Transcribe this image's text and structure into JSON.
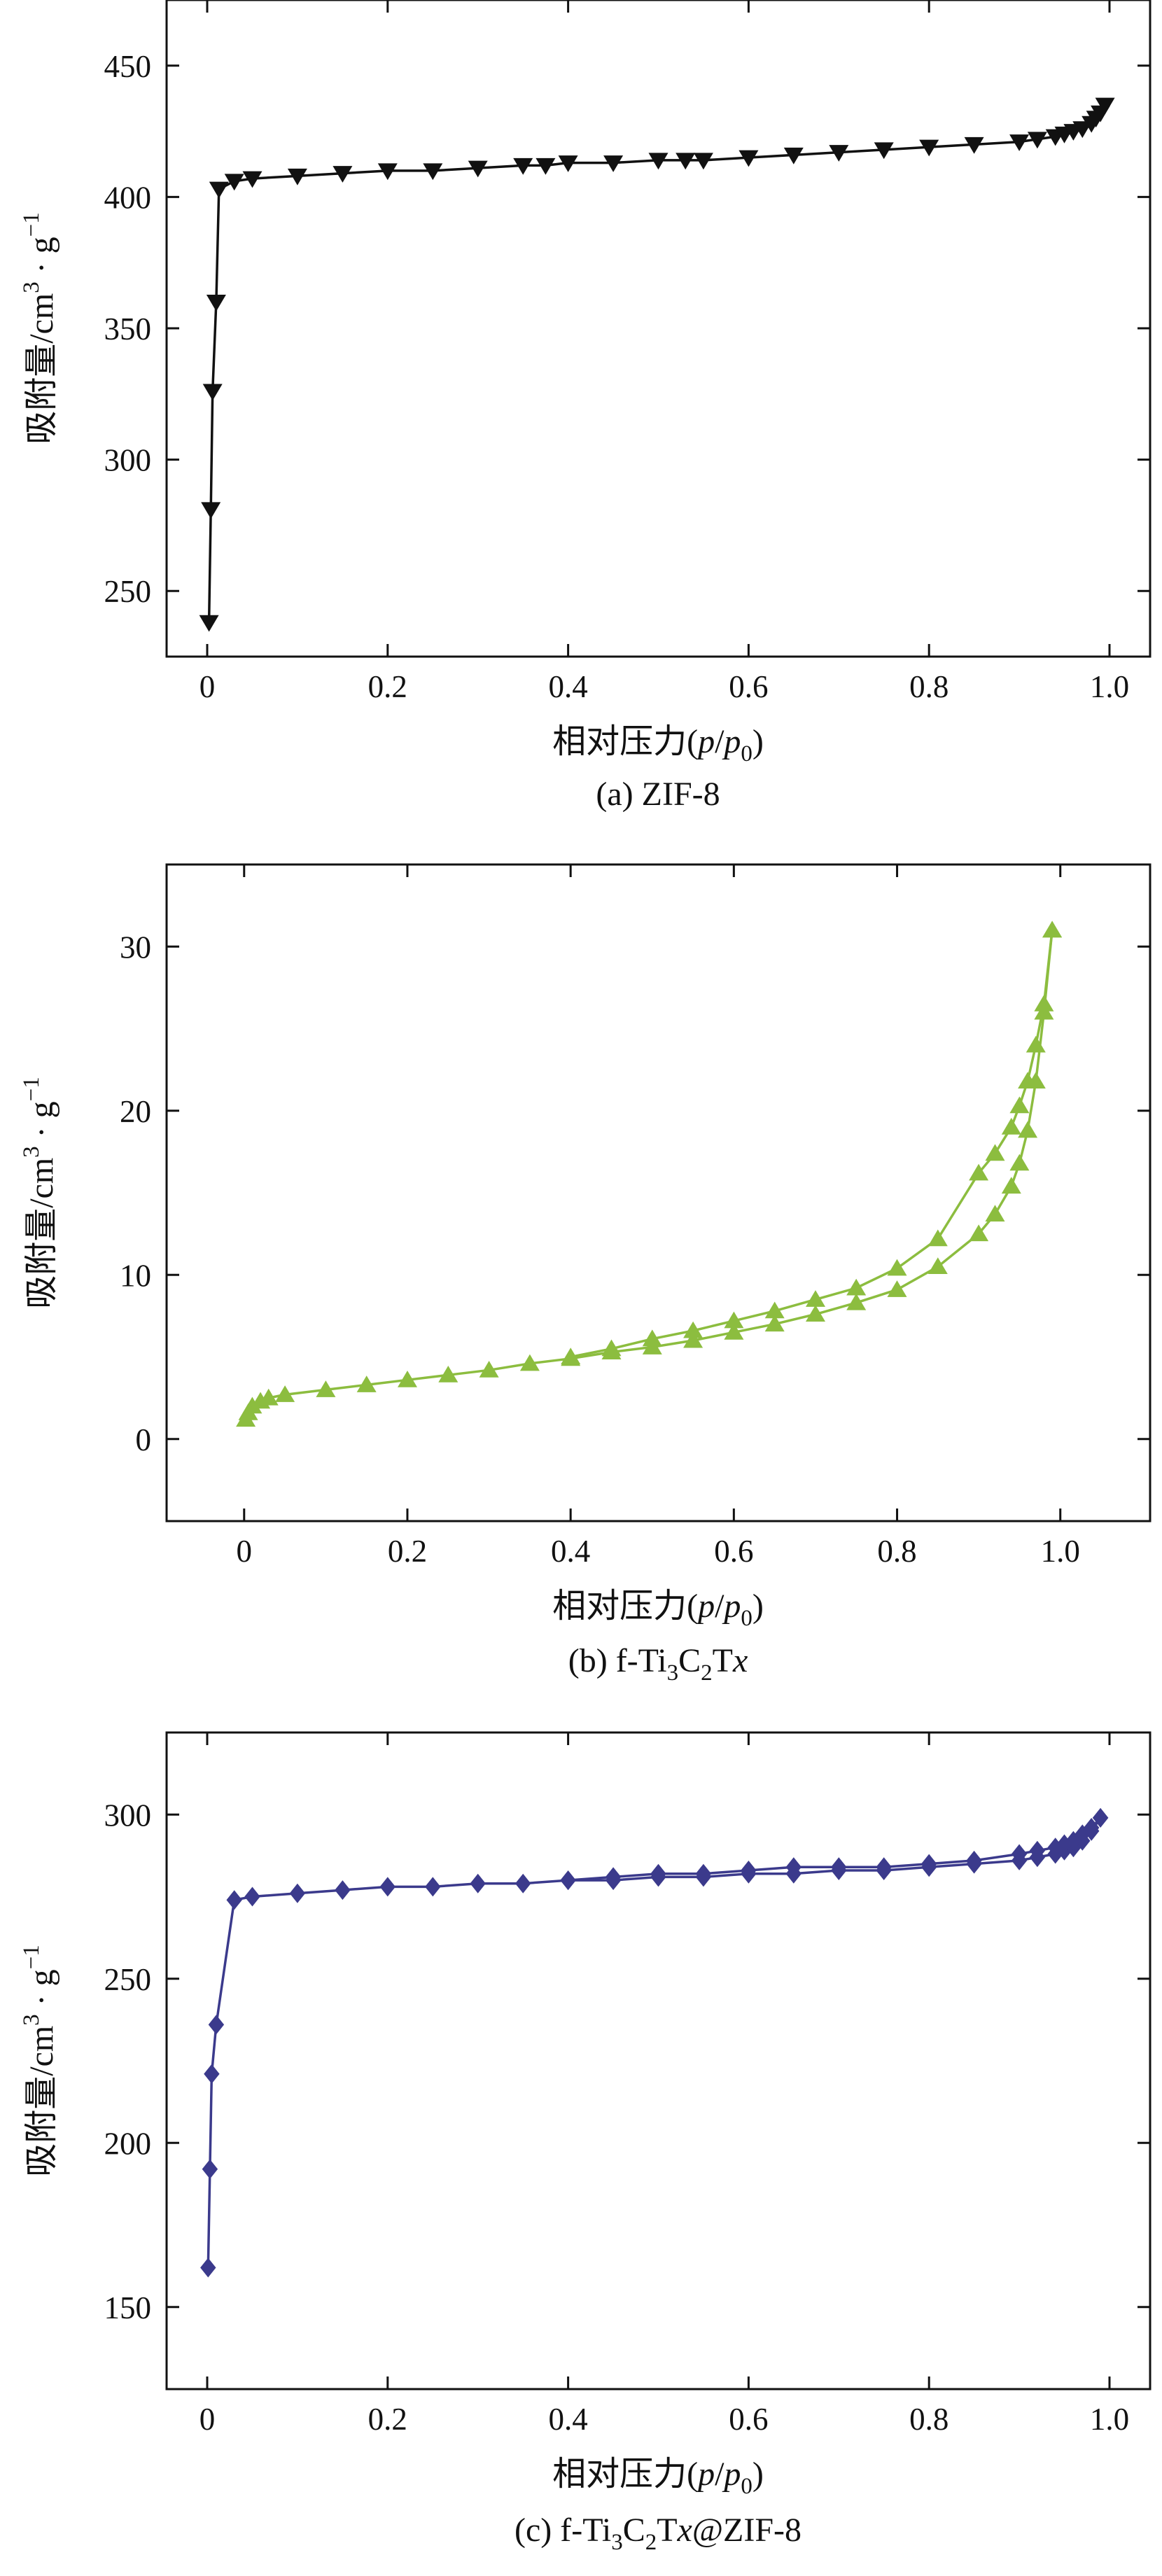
{
  "chart_data": [
    {
      "type": "line",
      "caption": {
        "pre": "(a) ZIF-8",
        "sub1": "",
        "mid": "",
        "sub2": "",
        "mid2": "",
        "ital": "",
        "post": ""
      },
      "xlabel": {
        "pre": "相对压力(",
        "i1": "p",
        "slash": "/",
        "i2": "p",
        "sub": "0",
        "post": ")"
      },
      "ylabel": {
        "pre": "吸附量/cm",
        "sup": "3",
        "mid": " · g",
        "sup2": "−1"
      },
      "xlim": [
        -0.045,
        1.045
      ],
      "ylim": [
        225,
        475
      ],
      "xticks": [
        0,
        0.2,
        0.4,
        0.6,
        0.8,
        1.0
      ],
      "xtick_labels": [
        "0",
        "0.2",
        "0.4",
        "0.6",
        "0.8",
        "1.0"
      ],
      "yticks": [
        250,
        300,
        350,
        400,
        450
      ],
      "ytick_labels": [
        "250",
        "300",
        "350",
        "400",
        "450"
      ],
      "color": "#111111",
      "marker": "triangle-down",
      "series": [
        {
          "x": [
            0.002,
            0.004,
            0.006,
            0.01,
            0.013,
            0.03,
            0.05,
            0.1,
            0.15,
            0.2,
            0.25,
            0.3,
            0.35,
            0.375,
            0.4,
            0.45,
            0.5,
            0.53,
            0.55,
            0.6,
            0.65,
            0.7,
            0.75,
            0.8,
            0.85,
            0.9,
            0.92,
            0.94,
            0.95,
            0.96,
            0.97,
            0.98,
            0.985,
            0.99,
            0.995
          ],
          "y": [
            238,
            281,
            326,
            360,
            403,
            406,
            407,
            408,
            409,
            410,
            410,
            411,
            412,
            412,
            413,
            413,
            414,
            414,
            414,
            415,
            416,
            417,
            418,
            419,
            420,
            421,
            422,
            423,
            424,
            425,
            426,
            428,
            430,
            432,
            435
          ]
        }
      ]
    },
    {
      "type": "line",
      "caption": {
        "pre": "(b) f-Ti",
        "sub1": "3",
        "mid": "C",
        "sub2": "2",
        "mid2": "T",
        "ital": "x",
        "post": ""
      },
      "xlabel": {
        "pre": "相对压力(",
        "i1": "p",
        "slash": "/",
        "i2": "p",
        "sub": "0",
        "post": ")"
      },
      "ylabel": {
        "pre": "吸附量/cm",
        "sup": "3",
        "mid": " · g",
        "sup2": "−1"
      },
      "xlim": [
        -0.095,
        1.11
      ],
      "ylim": [
        -5,
        35
      ],
      "xticks": [
        0,
        0.2,
        0.4,
        0.6,
        0.8,
        1.0
      ],
      "xtick_labels": [
        "0",
        "0.2",
        "0.4",
        "0.6",
        "0.8",
        "1.0"
      ],
      "yticks": [
        0,
        10,
        20,
        30
      ],
      "ytick_labels": [
        "0",
        "10",
        "20",
        "30"
      ],
      "color": "#8cbd3f",
      "marker": "triangle-up",
      "series": [
        {
          "x": [
            0.002,
            0.005,
            0.01,
            0.02,
            0.03,
            0.05,
            0.1,
            0.15,
            0.2,
            0.25,
            0.3,
            0.35,
            0.4,
            0.45,
            0.5,
            0.55,
            0.6,
            0.65,
            0.7,
            0.75,
            0.8,
            0.85,
            0.9,
            0.92,
            0.94,
            0.95,
            0.96,
            0.97,
            0.98,
            0.99
          ],
          "y": [
            1.2,
            1.6,
            2.0,
            2.3,
            2.5,
            2.7,
            3.0,
            3.3,
            3.6,
            3.9,
            4.2,
            4.6,
            4.9,
            5.3,
            5.6,
            6.0,
            6.5,
            7.0,
            7.6,
            8.3,
            9.1,
            10.5,
            12.5,
            13.7,
            15.4,
            16.8,
            18.8,
            21.8,
            26.0,
            31.0
          ]
        },
        {
          "x": [
            0.99,
            0.98,
            0.97,
            0.96,
            0.95,
            0.94,
            0.92,
            0.9,
            0.85,
            0.8,
            0.75,
            0.7,
            0.65,
            0.6,
            0.55,
            0.5,
            0.45,
            0.4
          ],
          "y": [
            31.0,
            26.5,
            24.0,
            21.8,
            20.3,
            19.0,
            17.4,
            16.2,
            12.2,
            10.4,
            9.2,
            8.5,
            7.8,
            7.2,
            6.6,
            6.1,
            5.5,
            5.0
          ]
        }
      ]
    },
    {
      "type": "line",
      "caption": {
        "pre": "(c) f-Ti",
        "sub1": "3",
        "mid": "C",
        "sub2": "2",
        "mid2": "T",
        "ital": "x",
        "post": "@ZIF-8"
      },
      "xlabel": {
        "pre": "相对压力(",
        "i1": "p",
        "slash": "/",
        "i2": "p",
        "sub": "0",
        "post": ")"
      },
      "ylabel": {
        "pre": "吸附量/cm",
        "sup": "3",
        "mid": " · g",
        "sup2": "−1"
      },
      "xlim": [
        -0.045,
        1.045
      ],
      "ylim": [
        125,
        325
      ],
      "xticks": [
        0,
        0.2,
        0.4,
        0.6,
        0.8,
        1.0
      ],
      "xtick_labels": [
        "0",
        "0.2",
        "0.4",
        "0.6",
        "0.8",
        "1.0"
      ],
      "yticks": [
        150,
        200,
        250,
        300
      ],
      "ytick_labels": [
        "150",
        "200",
        "250",
        "300"
      ],
      "color": "#3b3a8c",
      "marker": "diamond",
      "series": [
        {
          "x": [
            0.001,
            0.003,
            0.005,
            0.01,
            0.03,
            0.05,
            0.1,
            0.15,
            0.2,
            0.25,
            0.3,
            0.35,
            0.4,
            0.45,
            0.5,
            0.55,
            0.6,
            0.65,
            0.7,
            0.75,
            0.8,
            0.85,
            0.9,
            0.92,
            0.94,
            0.95,
            0.96,
            0.97,
            0.98,
            0.99
          ],
          "y": [
            162,
            192,
            221,
            236,
            274,
            275,
            276,
            277,
            278,
            278,
            279,
            279,
            280,
            280,
            281,
            281,
            282,
            282,
            283,
            283,
            284,
            285,
            286,
            287,
            288,
            289,
            290,
            292,
            295,
            299
          ]
        },
        {
          "x": [
            0.99,
            0.98,
            0.97,
            0.96,
            0.95,
            0.94,
            0.92,
            0.9,
            0.85,
            0.8,
            0.75,
            0.7,
            0.65,
            0.6,
            0.55,
            0.5,
            0.45,
            0.4
          ],
          "y": [
            299,
            296,
            294,
            292,
            291,
            290,
            289,
            288,
            286,
            285,
            284,
            284,
            284,
            283,
            282,
            282,
            281,
            280
          ]
        }
      ]
    }
  ]
}
